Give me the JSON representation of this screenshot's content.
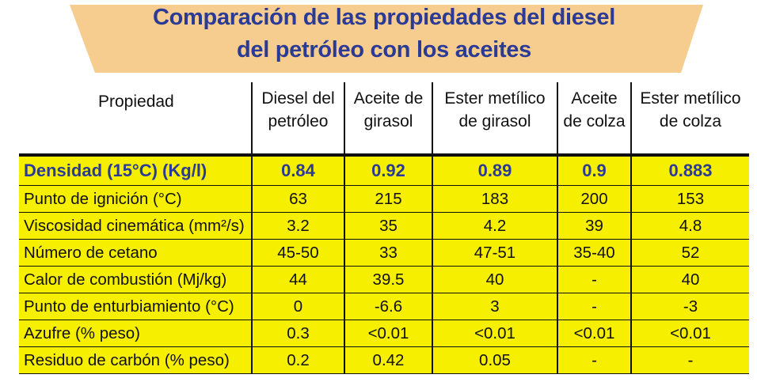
{
  "colors": {
    "banner": "#f6cd8e",
    "title_text": "#2b3a94",
    "cell_fill": "#f7ef00",
    "grid": "#111111"
  },
  "title": {
    "line1": "Comparación de las propiedades del diesel",
    "line2": "del petróleo con los aceites"
  },
  "table": {
    "headers": [
      {
        "line1": "Propiedad",
        "line2": ""
      },
      {
        "line1": "Diesel del",
        "line2": "petróleo"
      },
      {
        "line1": "Aceite de",
        "line2": "girasol"
      },
      {
        "line1": "Ester metílico",
        "line2": "de girasol"
      },
      {
        "line1": "Aceite",
        "line2": "de colza"
      },
      {
        "line1": "Ester metílico",
        "line2": "de colza"
      }
    ],
    "rows": [
      {
        "property": "Densidad (15°C) (Kg/l)",
        "values": [
          "0.84",
          "0.92",
          "0.89",
          "0.9",
          "0.883"
        ]
      },
      {
        "property": "Punto de ignición (°C)",
        "values": [
          "63",
          "215",
          "183",
          "200",
          "153"
        ]
      },
      {
        "property": "Viscosidad cinemática (mm²/s)",
        "values": [
          "3.2",
          "35",
          "4.2",
          "39",
          "4.8"
        ]
      },
      {
        "property": "Número de cetano",
        "values": [
          "45-50",
          "33",
          "47-51",
          "35-40",
          "52"
        ]
      },
      {
        "property": "Calor de combustión (Mj/kg)",
        "values": [
          "44",
          "39.5",
          "40",
          "-",
          "40"
        ]
      },
      {
        "property": "Punto de enturbiamiento (°C)",
        "values": [
          "0",
          "-6.6",
          "3",
          "-",
          "-3"
        ]
      },
      {
        "property": "Azufre (% peso)",
        "values": [
          "0.3",
          "<0.01",
          "<0.01",
          "<0.01",
          "<0.01"
        ]
      },
      {
        "property": "Residuo de carbón (% peso)",
        "values": [
          "0.2",
          "0.42",
          "0.05",
          "-",
          "-"
        ]
      }
    ]
  }
}
